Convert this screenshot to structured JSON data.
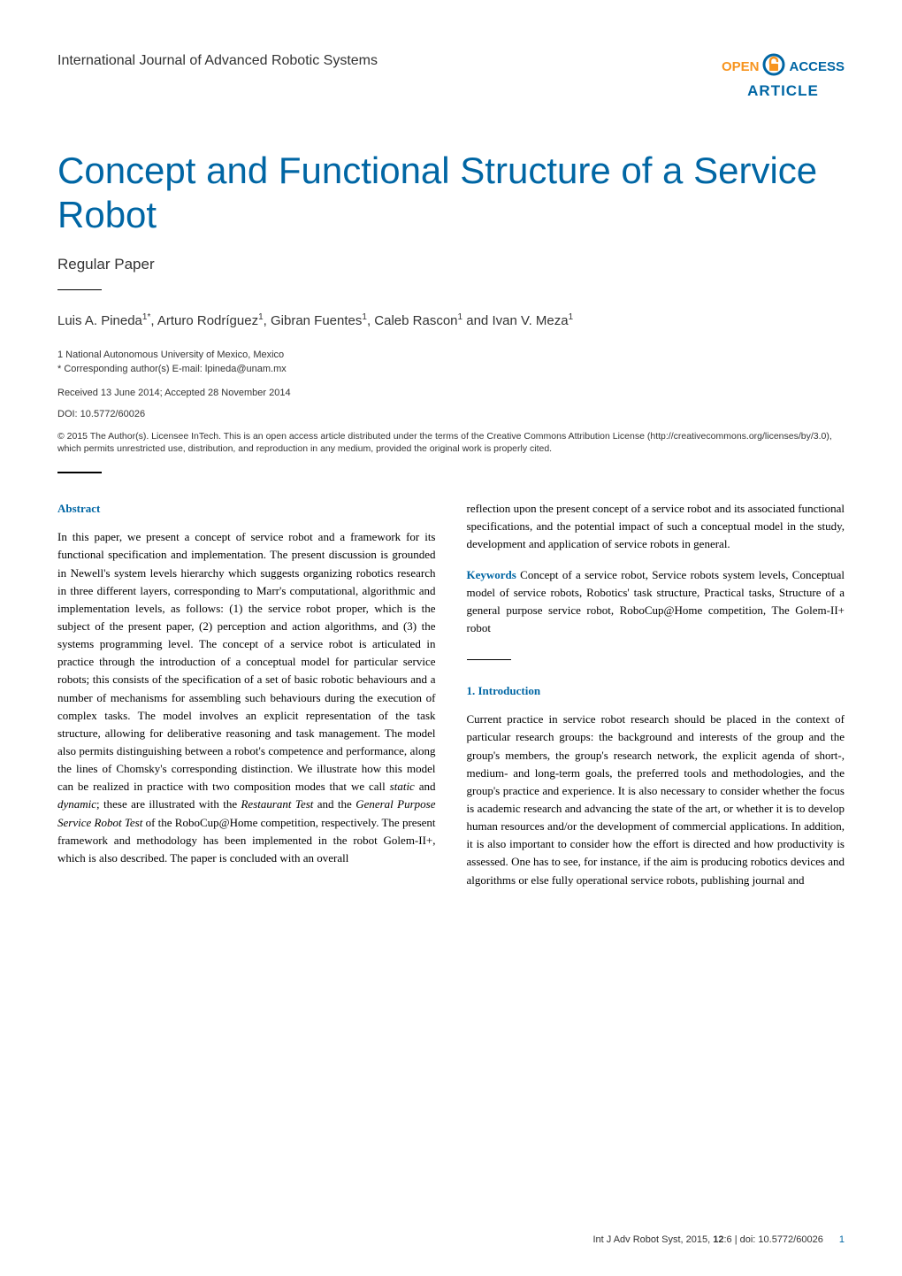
{
  "header": {
    "journal": "International Journal of Advanced Robotic Systems",
    "open_label": "OPEN",
    "access_label": "ACCESS",
    "article_label": "ARTICLE"
  },
  "title": "Concept and Functional Structure of a Service Robot",
  "subtitle": "Regular Paper",
  "authors_html": "Luis A. Pineda<sup>1*</sup>, Arturo Rodríguez<sup>1</sup>, Gibran Fuentes<sup>1</sup>, Caleb Rascon<sup>1</sup> and Ivan V. Meza<sup>1</sup>",
  "affiliation": {
    "line1": "1 National Autonomous University of Mexico, Mexico",
    "line2": "* Corresponding author(s) E-mail: lpineda@unam.mx"
  },
  "received": "Received 13 June 2014; Accepted 28 November 2014",
  "doi": "DOI: 10.5772/60026",
  "license": "© 2015 The Author(s). Licensee InTech. This is an open access article distributed under the terms of the Creative Commons Attribution License (http://creativecommons.org/licenses/by/3.0), which permits unrestricted use, distribution, and reproduction in any medium, provided the original work is properly cited.",
  "left_col": {
    "abstract_heading": "Abstract",
    "abstract_text": "In this paper, we present a concept of service robot and a framework for its functional specification and implementation. The present discussion is grounded in Newell's system levels hierarchy which suggests organizing robotics research in three different layers, corresponding to Marr's computational, algorithmic and implementation levels, as follows: (1) the service robot proper, which is the subject of the present paper, (2) perception and action algorithms, and (3) the systems programming level. The concept of a service robot is articulated in practice through the introduction of a conceptual model for particular service robots; this consists of the specification of a set of basic robotic behaviours and a number of mechanisms for assembling such behaviours during the execution of complex tasks. The model involves an explicit representation of the task structure, allowing for deliberative reasoning and task management. The model also permits distinguishing between a robot's competence and performance, along the lines of Chomsky's corresponding distinction. We illustrate how this model can be realized in practice with two composition modes that we call ",
    "abstract_italic1": "static",
    "abstract_mid1": " and ",
    "abstract_italic2": "dynamic",
    "abstract_mid2": "; these are illustrated with the ",
    "abstract_italic3": "Restaurant Test",
    "abstract_mid3": " and the ",
    "abstract_italic4": "General Purpose Service Robot Test",
    "abstract_text2": " of the RoboCup@Home competition, respectively. The present framework and methodology has been implemented in the robot Golem-II+, which is also described. The paper is concluded with an overall"
  },
  "right_col": {
    "continuation": "reflection upon the present concept of a service robot and its associated functional specifications, and the potential impact of such a conceptual model in the study, development and application of service robots in general.",
    "keywords_label": "Keywords",
    "keywords_text": " Concept of a service robot, Service robots system levels, Conceptual model of service robots, Robotics' task structure, Practical tasks, Structure of a general purpose service robot, RoboCup@Home competition, The Golem-II+ robot",
    "intro_heading": "1. Introduction",
    "intro_text": "Current practice in service robot research should be placed in the context of particular research groups: the background and interests of the group and the group's members, the group's research network, the explicit agenda of short-, medium- and long-term goals, the preferred tools and methodologies, and the group's practice and experience. It is also necessary to consider whether the focus is academic research and advancing the state of the art, or whether it is to develop human resources and/or the development of commercial applications. In addition, it is also important to consider how the effort is directed and how productivity is assessed. One has to see, for instance, if the aim is producing robotics devices and algorithms or else fully operational service robots, publishing journal and"
  },
  "footer": {
    "citation": "Int J Adv Robot Syst, 2015, ",
    "volume": "12",
    "citation2": ":6 | doi: 10.5772/60026",
    "page": "1"
  },
  "colors": {
    "accent_blue": "#0066a4",
    "accent_orange": "#f7941e",
    "text_gray": "#333333",
    "background": "#ffffff"
  }
}
